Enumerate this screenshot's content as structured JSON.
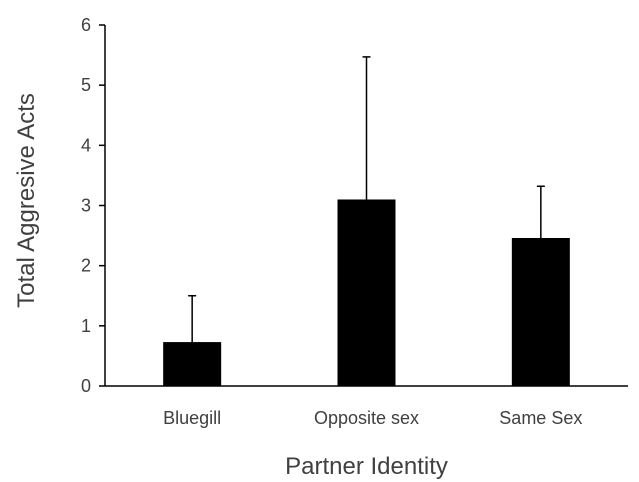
{
  "chart_data": {
    "type": "bar",
    "title": "",
    "xlabel": "Partner Identity",
    "ylabel": "Total Aggresive Acts",
    "categories": [
      "Bluegill",
      "Opposite sex",
      "Same Sex"
    ],
    "values": [
      0.73,
      3.1,
      2.46
    ],
    "error_upper": [
      1.5,
      5.47,
      3.32
    ],
    "ylim": [
      0,
      6
    ],
    "yticks": [
      "0",
      "1",
      "2",
      "3",
      "4",
      "5",
      "6"
    ],
    "grid": false,
    "legend": "none",
    "bar_color": "#000000",
    "axis_color": "#000000",
    "text_color": "#404040"
  }
}
